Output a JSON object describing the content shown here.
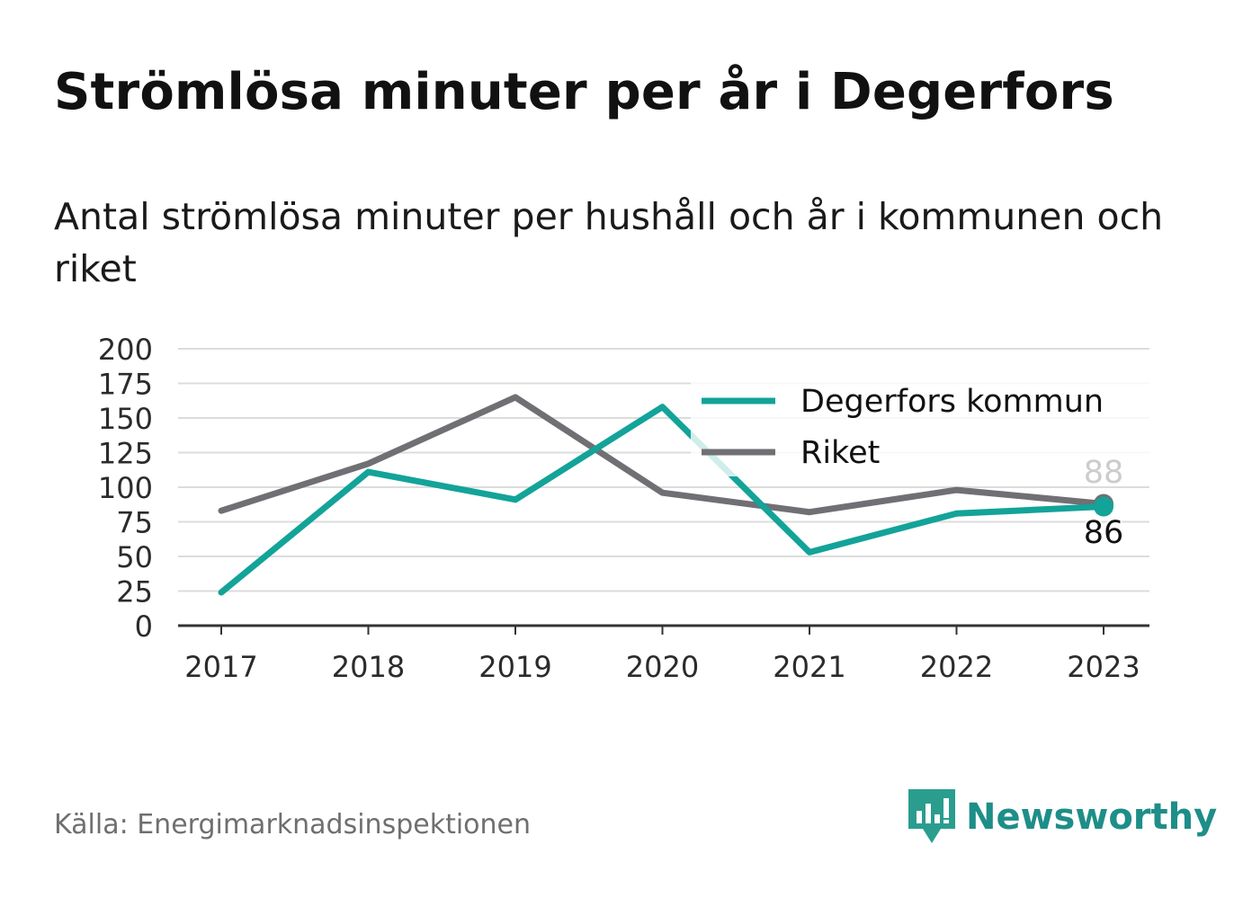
{
  "title": "Strömlösa minuter per år i Degerfors",
  "subtitle": "Antal strömlösa minuter per hushåll och år i kommunen och riket",
  "source": "Källa: Energimarknadsinspektionen",
  "brand": {
    "name": "Newsworthy",
    "icon": "newsworthy-logo-icon",
    "color": "#2a9d8f"
  },
  "chart_data": {
    "type": "line",
    "categories": [
      "2017",
      "2018",
      "2019",
      "2020",
      "2021",
      "2022",
      "2023"
    ],
    "ylim": [
      0,
      200
    ],
    "yticks": [
      0,
      25,
      50,
      75,
      100,
      125,
      150,
      175,
      200
    ],
    "grid": true,
    "legend_position": "top-right",
    "series": [
      {
        "name": "Degerfors kommun",
        "color": "#13a399",
        "values": [
          24,
          111,
          91,
          158,
          53,
          81,
          86
        ],
        "end_label": "86"
      },
      {
        "name": "Riket",
        "color": "#707074",
        "values": [
          83,
          117,
          165,
          96,
          82,
          98,
          88
        ],
        "end_label": "88"
      }
    ]
  }
}
